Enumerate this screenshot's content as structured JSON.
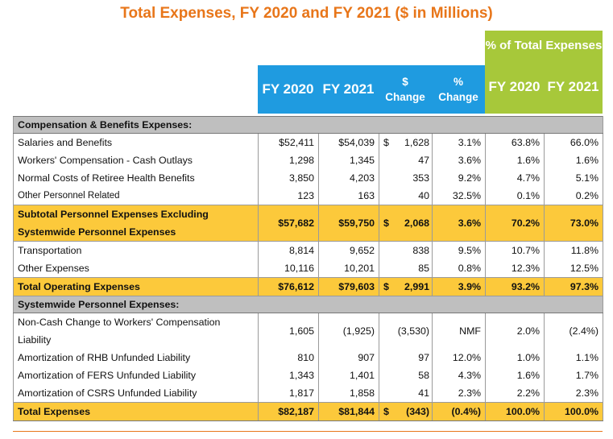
{
  "title": "Total Expenses, FY 2020 and FY 2021 ($ in Millions)",
  "header": {
    "pct_group": "% of Total Expenses",
    "fy2020": "FY 2020",
    "fy2021": "FY 2021",
    "dollar_change": [
      "$",
      "Change"
    ],
    "pct_change": [
      "%",
      "Change"
    ],
    "pct_fy2020": "FY 2020",
    "pct_fy2021": "FY 2021"
  },
  "colors": {
    "title": "#e8761a",
    "header_blue": "#1f9be0",
    "header_green": "#a7c83a",
    "highlight": "#fcc93b",
    "section": "#bfbfbf"
  },
  "rows": [
    {
      "type": "section",
      "label": "Compensation & Benefits Expenses:"
    },
    {
      "label": "Salaries and Benefits",
      "fy2020": "$52,411",
      "fy2021": "$54,039",
      "chg_cur": "$",
      "chg": "1,628",
      "pct": "3.1%",
      "p2020": "63.8%",
      "p2021": "66.0%"
    },
    {
      "label": "Workers' Compensation - Cash Outlays",
      "fy2020": "1,298",
      "fy2021": "1,345",
      "chg_cur": "",
      "chg": "47",
      "pct": "3.6%",
      "p2020": "1.6%",
      "p2021": "1.6%"
    },
    {
      "label": "Normal Costs of Retiree Health Benefits",
      "fy2020": "3,850",
      "fy2021": "4,203",
      "chg_cur": "",
      "chg": "353",
      "pct": "9.2%",
      "p2020": "4.7%",
      "p2021": "5.1%"
    },
    {
      "label": "Other Personnel Related",
      "fy2020": "123",
      "fy2021": "163",
      "chg_cur": "",
      "chg": "40",
      "pct": "32.5%",
      "p2020": "0.1%",
      "p2021": "0.2%",
      "small": true
    },
    {
      "type": "highlight",
      "tall": true,
      "label": "Subtotal Personnel Expenses Excluding Systemwide Personnel Expenses",
      "fy2020": "$57,682",
      "fy2021": "$59,750",
      "chg_cur": "$",
      "chg": "2,068",
      "pct": "3.6%",
      "p2020": "70.2%",
      "p2021": "73.0%"
    },
    {
      "label": "Transportation",
      "fy2020": "8,814",
      "fy2021": "9,652",
      "chg_cur": "",
      "chg": "838",
      "pct": "9.5%",
      "p2020": "10.7%",
      "p2021": "11.8%"
    },
    {
      "label": "Other Expenses",
      "fy2020": "10,116",
      "fy2021": "10,201",
      "chg_cur": "",
      "chg": "85",
      "pct": "0.8%",
      "p2020": "12.3%",
      "p2021": "12.5%"
    },
    {
      "type": "highlight",
      "label": "Total Operating Expenses",
      "fy2020": "$76,612",
      "fy2021": "$79,603",
      "chg_cur": "$",
      "chg": "2,991",
      "pct": "3.9%",
      "p2020": "93.2%",
      "p2021": "97.3%"
    },
    {
      "type": "section",
      "label": "Systemwide Personnel Expenses:"
    },
    {
      "tall": true,
      "label": "Non-Cash Change to Workers' Compensation Liability",
      "fy2020": "1,605",
      "fy2021": "(1,925)",
      "chg_cur": "",
      "chg": "(3,530)",
      "pct": "NMF",
      "p2020": "2.0%",
      "p2021": "(2.4%)"
    },
    {
      "label": "Amortization of RHB Unfunded Liability",
      "fy2020": "810",
      "fy2021": "907",
      "chg_cur": "",
      "chg": "97",
      "pct": "12.0%",
      "p2020": "1.0%",
      "p2021": "1.1%"
    },
    {
      "label": "Amortization of FERS Unfunded Liability",
      "fy2020": "1,343",
      "fy2021": "1,401",
      "chg_cur": "",
      "chg": "58",
      "pct": "4.3%",
      "p2020": "1.6%",
      "p2021": "1.7%"
    },
    {
      "label": "Amortization of CSRS Unfunded Liability",
      "fy2020": "1,817",
      "fy2021": "1,858",
      "chg_cur": "",
      "chg": "41",
      "pct": "2.3%",
      "p2020": "2.2%",
      "p2021": "2.3%"
    },
    {
      "type": "highlight",
      "label": "Total Expenses",
      "fy2020": "$82,187",
      "fy2021": "$81,844",
      "chg_cur": "$",
      "chg": "(343)",
      "pct": "(0.4%)",
      "p2020": "100.0%",
      "p2021": "100.0%"
    }
  ]
}
